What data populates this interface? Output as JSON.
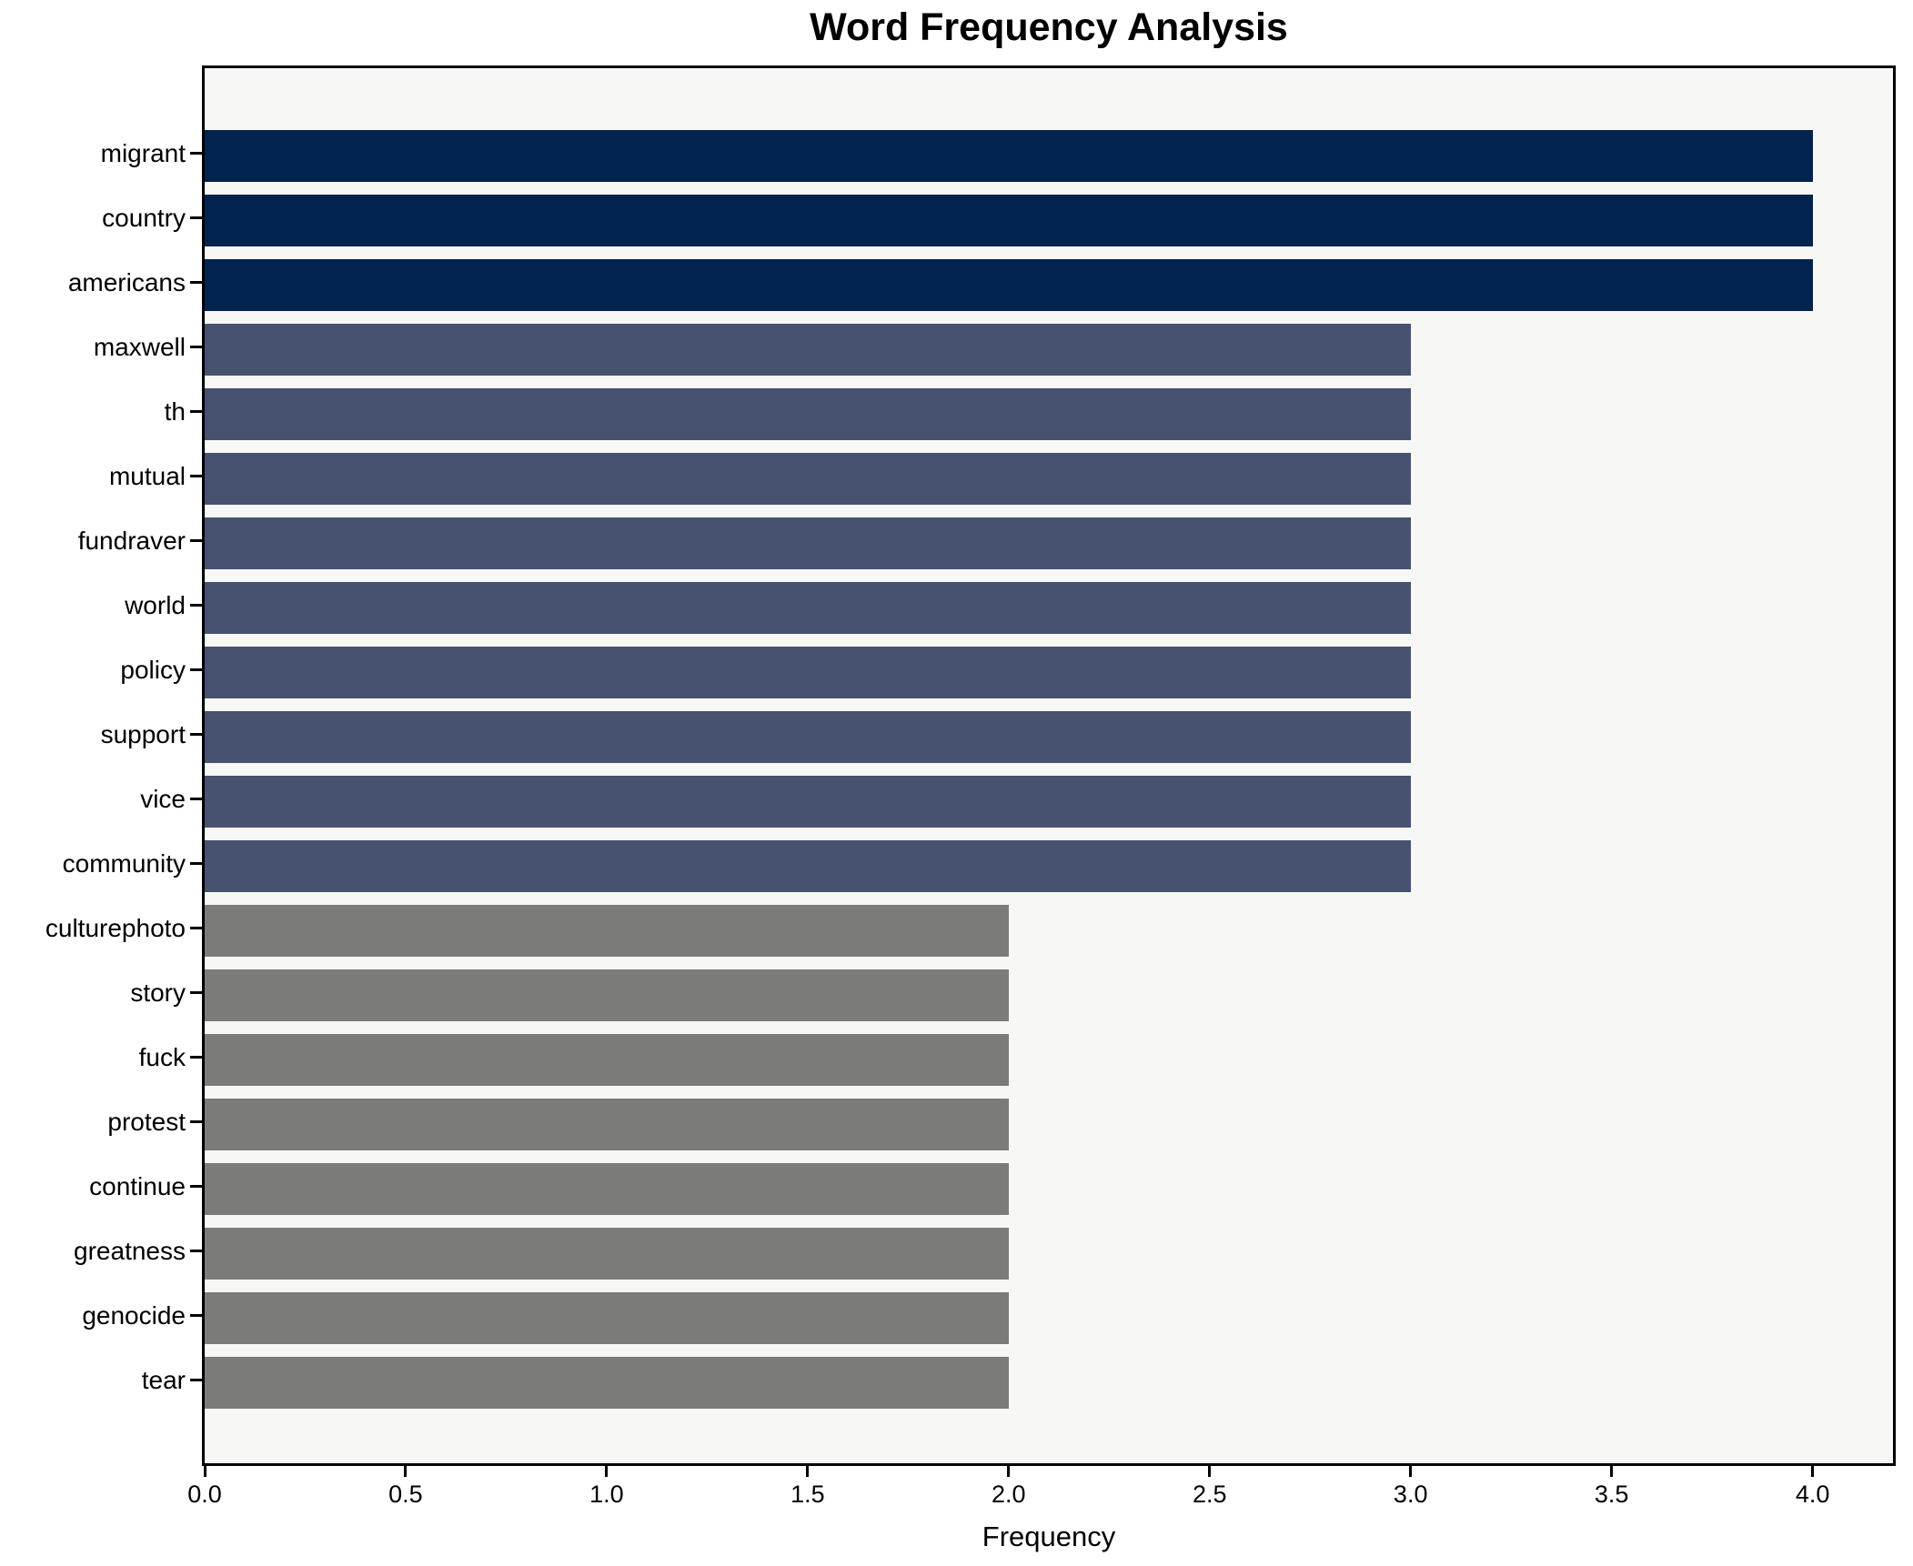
{
  "chart_data": {
    "type": "bar",
    "orientation": "horizontal",
    "title": "Word Frequency Analysis",
    "xlabel": "Frequency",
    "categories": [
      "migrant",
      "country",
      "americans",
      "maxwell",
      "th",
      "mutual",
      "fundraver",
      "world",
      "policy",
      "support",
      "vice",
      "community",
      "culturephoto",
      "story",
      "fuck",
      "protest",
      "continue",
      "greatness",
      "genocide",
      "tear"
    ],
    "values": [
      4,
      4,
      4,
      3,
      3,
      3,
      3,
      3,
      3,
      3,
      3,
      3,
      2,
      2,
      2,
      2,
      2,
      2,
      2,
      2
    ],
    "bar_colors": [
      "#02234E",
      "#02234E",
      "#02234E",
      "#475170",
      "#475170",
      "#475170",
      "#475170",
      "#475170",
      "#475170",
      "#475170",
      "#475170",
      "#475170",
      "#7B7B78",
      "#7B7B78",
      "#7B7B78",
      "#7B7B78",
      "#7B7B78",
      "#7B7B78",
      "#7B7B78",
      "#7B7B78"
    ],
    "xlim": [
      0,
      4.2
    ],
    "xticks": [
      0.0,
      0.5,
      1.0,
      1.5,
      2.0,
      2.5,
      3.0,
      3.5,
      4.0
    ],
    "xtick_labels": [
      "0.0",
      "0.5",
      "1.0",
      "1.5",
      "2.0",
      "2.5",
      "3.0",
      "3.5",
      "4.0"
    ],
    "grid": false,
    "legend": "none",
    "colors": {
      "value_4_bar": "#02234E",
      "value_3_bar": "#475170",
      "value_2_bar": "#7B7B78",
      "plot_background": "#F7F7F6",
      "figure_background": "#FFFFFF",
      "spine": "#000000",
      "text": "#000000"
    }
  }
}
